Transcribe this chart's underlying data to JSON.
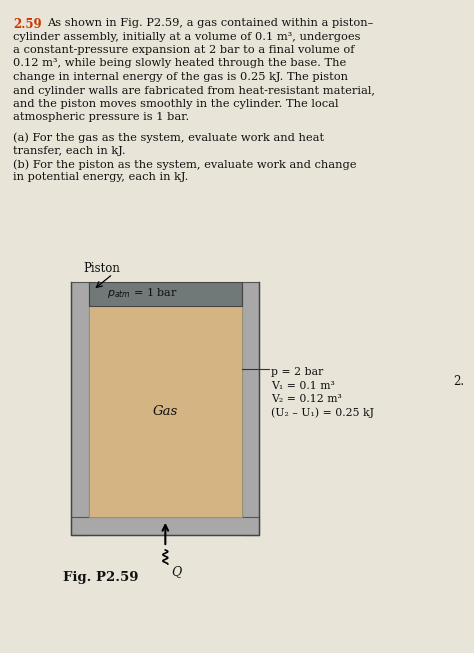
{
  "title_number": "2.59",
  "lines_p1": [
    "As shown in Fig. P2.59, a gas contained within a piston–",
    "cylinder assembly, initially at a volume of 0.1 m³, undergoes",
    "a constant-pressure expansion at 2 bar to a final volume of",
    "0.12 m³, while being slowly heated through the base. The",
    "change in internal energy of the gas is 0.25 kJ. The piston",
    "and cylinder walls are fabricated from heat-resistant material,",
    "and the piston moves smoothly in the cylinder. The local",
    "atmospheric pressure is 1 bar."
  ],
  "lines_ab": [
    "(a) For the gas as the system, evaluate work and heat",
    "transfer, each in kJ.",
    "(b) For the piston as the system, evaluate work and change",
    "in potential energy, each in kJ."
  ],
  "fig_label": "Fig. P2.59",
  "piston_label": "Piston",
  "patm_label": "$p_{atm}$ = 1 bar",
  "gas_label": "Gas",
  "Q_label": "Q",
  "annotations": [
    "p = 2 bar",
    "V₁ = 0.1 m³",
    "V₂ = 0.12 m³",
    "(U₂ – U₁) = 0.25 kJ"
  ],
  "cylinder_outer_color": "#a8a8a8",
  "piston_color": "#707878",
  "gas_color": "#d4b483",
  "page_bg": "#e8e4d8",
  "title_color": "#cc3300",
  "text_color": "#111111"
}
